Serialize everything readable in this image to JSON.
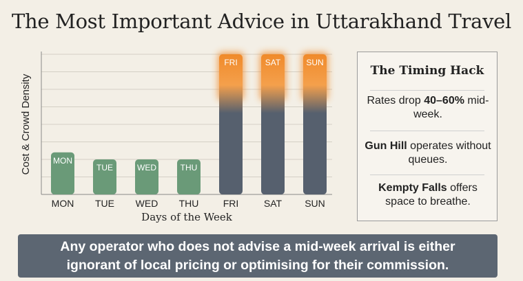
{
  "title": "The Most Important Advice in Uttarakhand Travel",
  "chart_data": {
    "type": "bar",
    "categories": [
      "MON",
      "TUE",
      "WED",
      "THU",
      "FRI",
      "SAT",
      "SUN"
    ],
    "values": [
      3,
      2.5,
      2.5,
      2.5,
      10,
      10,
      10
    ],
    "xlabel": "Days of the Week",
    "ylabel": "Cost & Crowd Density",
    "ylim": [
      0,
      10
    ],
    "grid": true,
    "bar_labels": [
      "MON",
      "TUE",
      "WED",
      "THU",
      "FRI",
      "SAT",
      "SUN"
    ],
    "colors": {
      "weekday": "#6a9a78",
      "weekend_base": "#56606e",
      "weekend_glow": "#f08a2a"
    }
  },
  "panel": {
    "title": "The Timing Hack",
    "items": [
      {
        "pre": "Rates drop ",
        "bold": "40–60%",
        "post": " mid-week."
      },
      {
        "pre": "",
        "bold": "Gun Hill",
        "post": " operates without queues."
      },
      {
        "pre": "",
        "bold": "Kempty Falls",
        "post": " offers space to breathe."
      }
    ]
  },
  "banner": {
    "line1": "Any operator who does not advise a mid-week arrival is either",
    "line2": "ignorant of local pricing or optimising for their commission."
  }
}
